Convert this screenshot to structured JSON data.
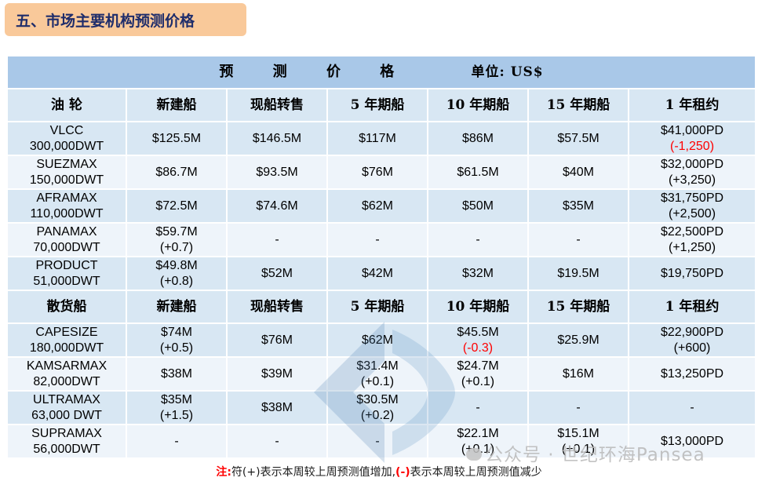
{
  "section_title": "五、市场主要机构预测价格",
  "table": {
    "title": "预 测 价 格",
    "unit": "单位: US$",
    "tanker_headers": [
      "油 轮",
      "新建船",
      "现船转售",
      "5 年期船",
      "10 年期船",
      "15 年期船",
      "1 年租约"
    ],
    "tanker_rows": [
      {
        "name": "VLCC",
        "size": "300,000DWT",
        "cells": [
          [
            "$125.5M"
          ],
          [
            "$146.5M"
          ],
          [
            "$117M"
          ],
          [
            "$86M"
          ],
          [
            "$57.5M"
          ],
          [
            "$41,000PD",
            "(-1,250)"
          ]
        ],
        "neg": [
          false,
          false,
          false,
          false,
          false,
          true
        ]
      },
      {
        "name": "SUEZMAX",
        "size": "150,000DWT",
        "cells": [
          [
            "$86.7M"
          ],
          [
            "$93.5M"
          ],
          [
            "$76M"
          ],
          [
            "$61.5M"
          ],
          [
            "$40M"
          ],
          [
            "$32,000PD",
            "(+3,250)"
          ]
        ],
        "neg": [
          false,
          false,
          false,
          false,
          false,
          false
        ]
      },
      {
        "name": "AFRAMAX",
        "size": "110,000DWT",
        "cells": [
          [
            "$72.5M"
          ],
          [
            "$74.6M"
          ],
          [
            "$62M"
          ],
          [
            "$50M"
          ],
          [
            "$35M"
          ],
          [
            "$31,750PD",
            "(+2,500)"
          ]
        ],
        "neg": [
          false,
          false,
          false,
          false,
          false,
          false
        ]
      },
      {
        "name": "PANAMAX",
        "size": "70,000DWT",
        "cells": [
          [
            "$59.7M",
            "(+0.7)"
          ],
          [
            "-"
          ],
          [
            "-"
          ],
          [
            "-"
          ],
          [
            "-"
          ],
          [
            "$22,500PD",
            "(+1,250)"
          ]
        ],
        "neg": [
          false,
          false,
          false,
          false,
          false,
          false
        ]
      },
      {
        "name": "PRODUCT",
        "size": "51,000DWT",
        "cells": [
          [
            "$49.8M",
            "(+0.8)"
          ],
          [
            "$52M"
          ],
          [
            "$42M"
          ],
          [
            "$32M"
          ],
          [
            "$19.5M"
          ],
          [
            "$19,750PD"
          ]
        ],
        "neg": [
          false,
          false,
          false,
          false,
          false,
          false
        ]
      }
    ],
    "bulk_headers": [
      "散货船",
      "新建船",
      "现船转售",
      "5 年期船",
      "10 年期船",
      "15 年期船",
      "1 年租约"
    ],
    "bulk_rows": [
      {
        "name": "CAPESIZE",
        "size": "180,000DWT",
        "cells": [
          [
            "$74M",
            "(+0.5)"
          ],
          [
            "$76M"
          ],
          [
            "$62M"
          ],
          [
            "$45.5M",
            "(-0.3)"
          ],
          [
            "$25.9M"
          ],
          [
            "$22,900PD",
            "(+600)"
          ]
        ],
        "neg": [
          false,
          false,
          false,
          true,
          false,
          false
        ]
      },
      {
        "name": "KAMSARMAX",
        "size": "82,000DWT",
        "cells": [
          [
            "$38M"
          ],
          [
            "$39M"
          ],
          [
            "$31.4M",
            "(+0.1)"
          ],
          [
            "$24.7M",
            "(+0.1)"
          ],
          [
            "$16M"
          ],
          [
            "$13,250PD"
          ]
        ],
        "neg": [
          false,
          false,
          false,
          false,
          false,
          false
        ]
      },
      {
        "name": "ULTRAMAX",
        "size": "63,000 DWT",
        "cells": [
          [
            "$35M",
            "(+1.5)"
          ],
          [
            "$38M"
          ],
          [
            "$30.5M",
            "(+0.2)"
          ],
          [
            "-"
          ],
          [
            "-"
          ],
          [
            "-"
          ]
        ],
        "neg": [
          false,
          false,
          false,
          false,
          false,
          false
        ]
      },
      {
        "name": "SUPRAMAX",
        "size": "56,000DWT",
        "cells": [
          [
            "-"
          ],
          [
            "-"
          ],
          [
            "-"
          ],
          [
            "$22.1M",
            "(+0.1)"
          ],
          [
            "$15.1M",
            "(+0.1)"
          ],
          [
            "$13,000PD"
          ]
        ],
        "neg": [
          false,
          false,
          false,
          false,
          false,
          false
        ]
      }
    ]
  },
  "footnote": {
    "prefix": "注:",
    "text1": "符(+)表示本周较上周预测值增加,",
    "neg_mark": "(-)",
    "text2": "表示本周较上周预测值减少"
  },
  "watermark": "公众号 · 世纪环海Pansea"
}
